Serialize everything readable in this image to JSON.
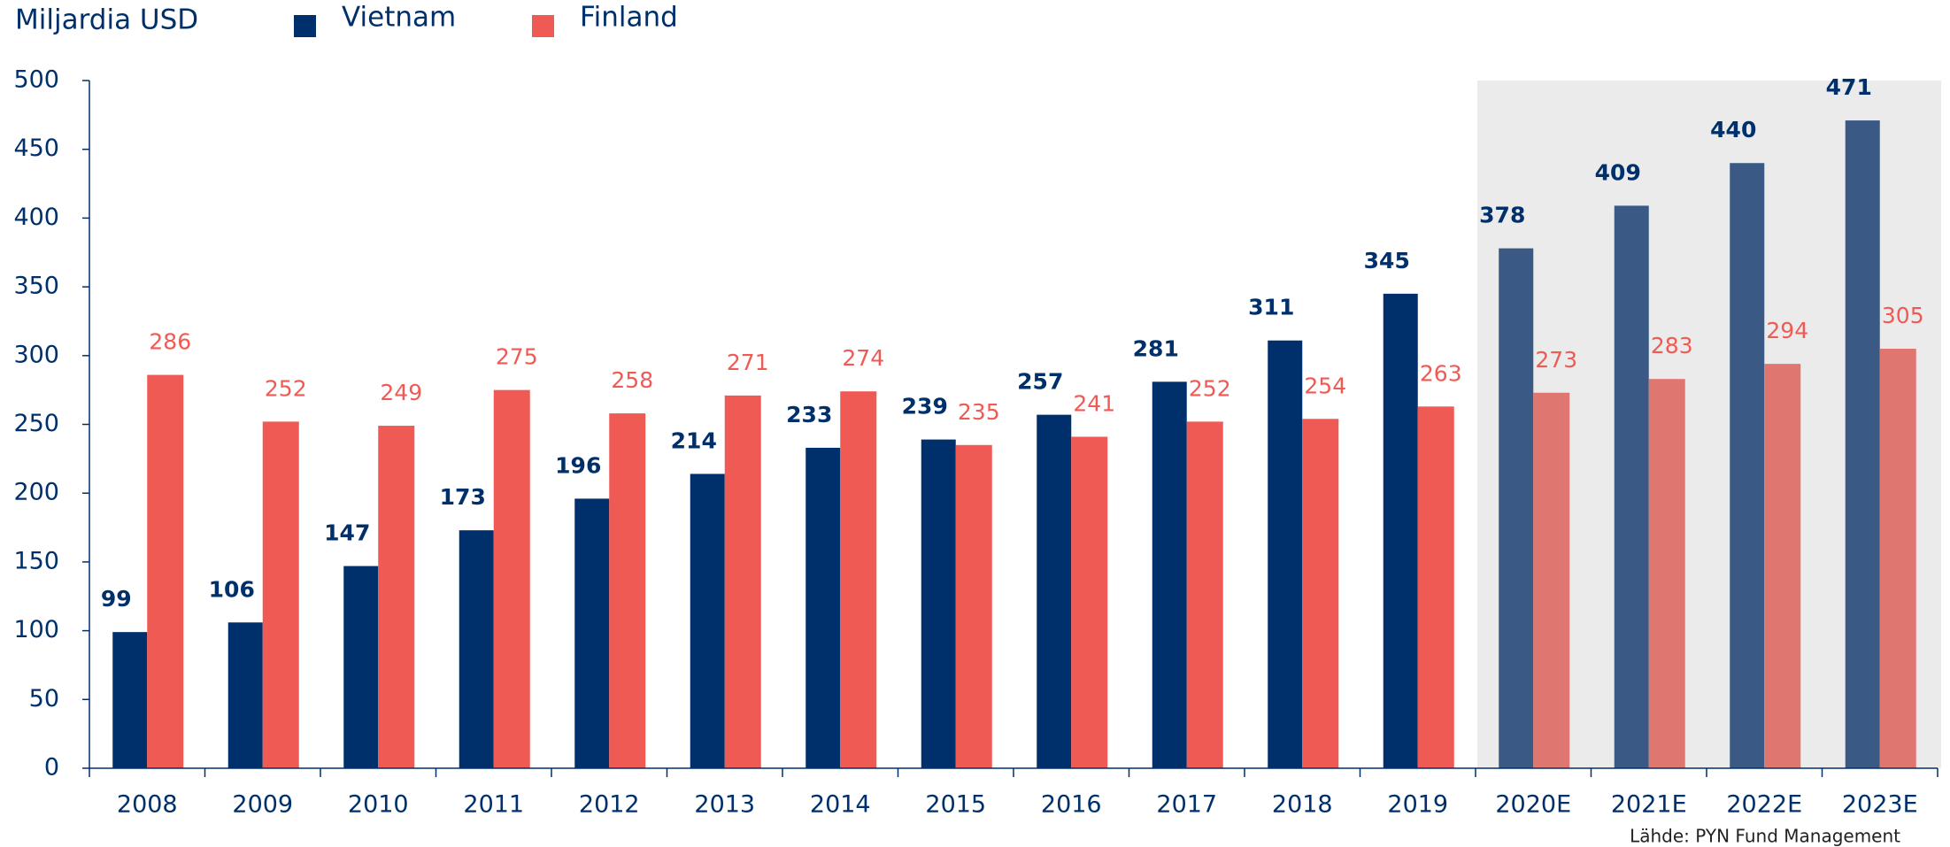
{
  "chart_data": {
    "type": "bar",
    "title": "Miljardia USD",
    "source": "Lähde: PYN Fund Management",
    "categories": [
      "2008",
      "2009",
      "2010",
      "2011",
      "2012",
      "2013",
      "2014",
      "2015",
      "2016",
      "2017",
      "2018",
      "2019",
      "2020E",
      "2021E",
      "2022E",
      "2023E"
    ],
    "series": [
      {
        "name": "Vietnam",
        "color": "#00306b",
        "forecast_color": "#3a5a85",
        "label_color": "#00306b",
        "values": [
          99,
          106,
          147,
          173,
          196,
          214,
          233,
          239,
          257,
          281,
          311,
          345,
          378,
          409,
          440,
          471
        ]
      },
      {
        "name": "Finland",
        "color": "#f05a55",
        "forecast_color": "#e07670",
        "label_color": "#f05a55",
        "values": [
          286,
          252,
          249,
          275,
          258,
          271,
          274,
          235,
          241,
          252,
          254,
          263,
          273,
          283,
          294,
          305
        ]
      }
    ],
    "forecast_start": "2020E",
    "shade_color": "#ebebeb",
    "ylim": [
      0,
      500
    ],
    "yticks": [
      0,
      50,
      100,
      150,
      200,
      250,
      300,
      350,
      400,
      450,
      500
    ]
  }
}
